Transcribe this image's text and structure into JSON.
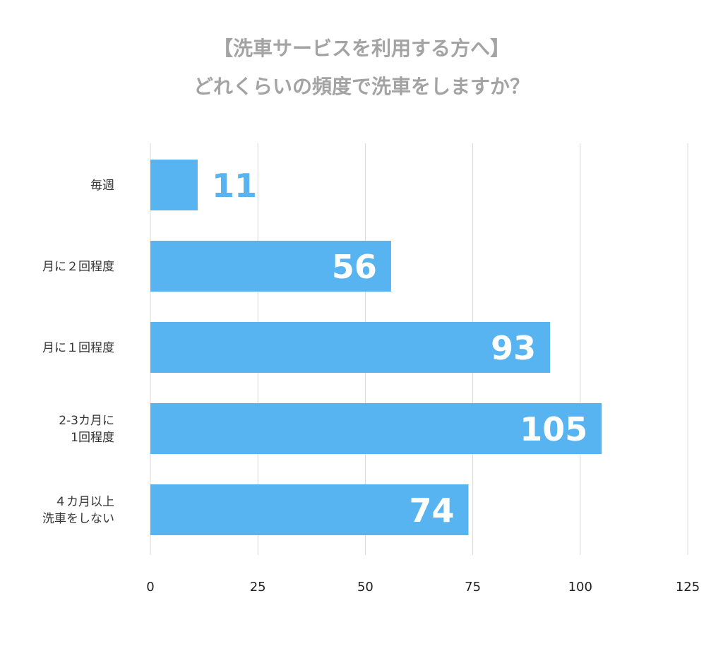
{
  "chart_data": {
    "type": "bar",
    "orientation": "horizontal",
    "title": [
      "【洗車サービスを利用する方へ】",
      "どれくらいの頻度で洗車をしますか？"
    ],
    "categories": [
      [
        "毎週"
      ],
      [
        "月に２回程度"
      ],
      [
        "月に１回程度"
      ],
      [
        "2-3カ月に",
        "1回程度"
      ],
      [
        "４カ月以上",
        "洗車をしない"
      ]
    ],
    "values": [
      11,
      56,
      93,
      105,
      74
    ],
    "xlim": [
      0,
      125
    ],
    "xticks": [
      0,
      25,
      50,
      75,
      100,
      125
    ],
    "grid": true,
    "bar_color": "#58b4f0",
    "outside_label_color": "#58b4f0",
    "inside_label_color": "#ffffff",
    "grid_color": "#d9d9d9"
  }
}
